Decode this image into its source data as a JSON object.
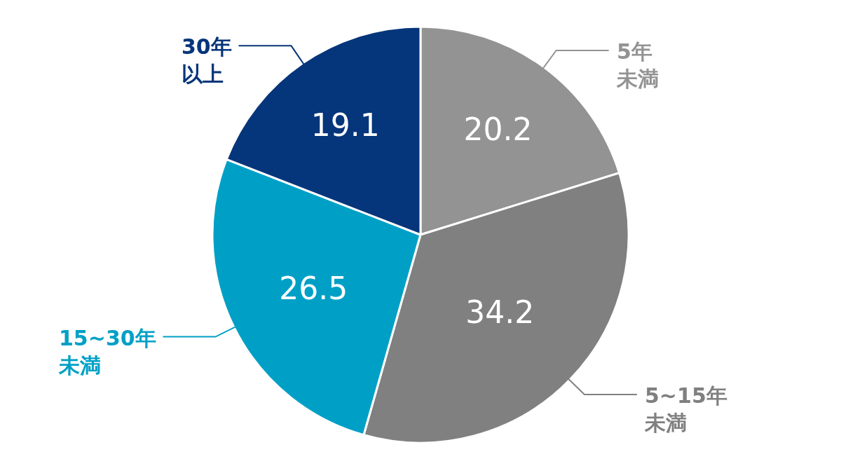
{
  "chart_data": {
    "type": "pie",
    "categories": [
      "5年未満",
      "5~15年未満",
      "15~30年未満",
      "30年以上"
    ],
    "values": [
      20.2,
      34.2,
      26.5,
      19.1
    ],
    "colors": [
      "#939393",
      "#808080",
      "#00a0c6",
      "#05357a"
    ],
    "data_labels": true,
    "legend": false
  }
}
